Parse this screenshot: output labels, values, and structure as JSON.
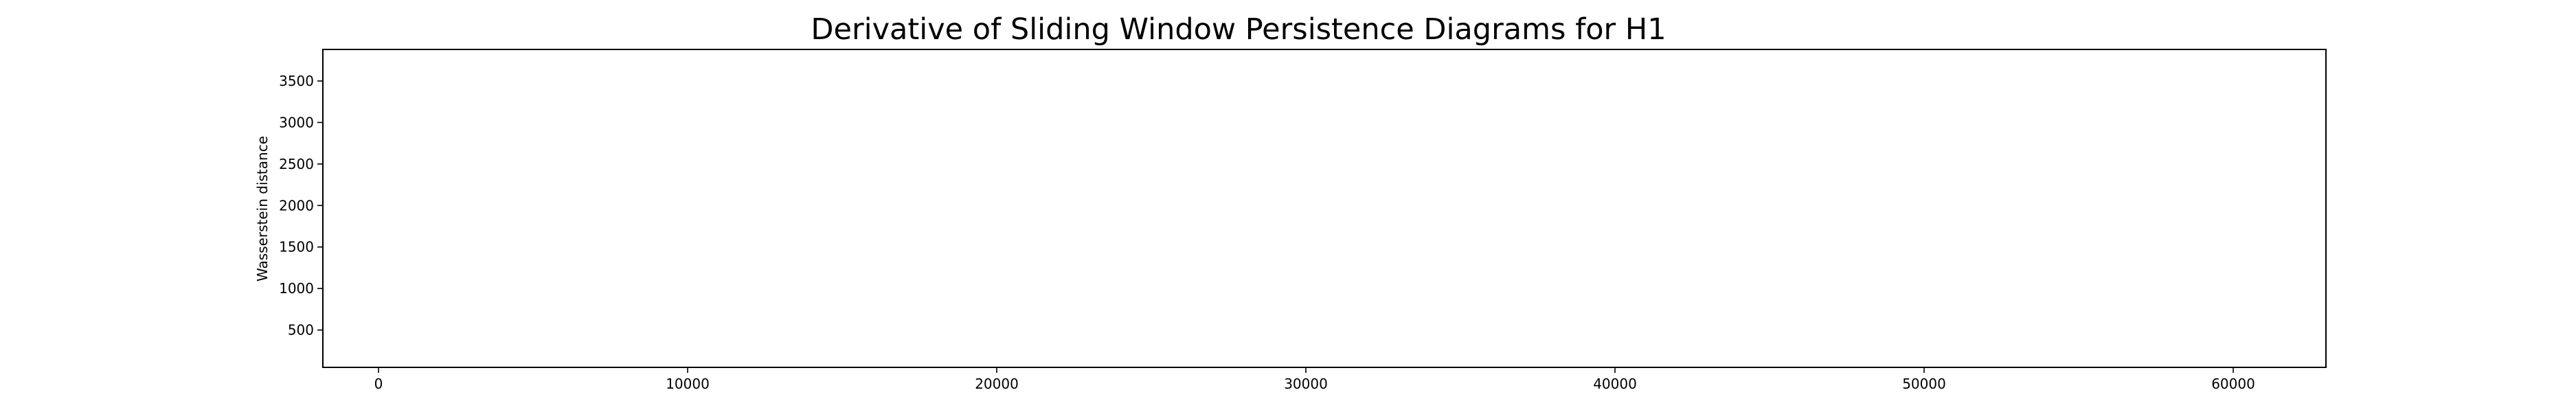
{
  "chart_data": {
    "type": "line",
    "title": "Derivative of Sliding Window Persistence Diagrams for H1",
    "xlabel": "",
    "ylabel": "Wasserstein distance",
    "xlim": [
      -1800,
      63000
    ],
    "ylim": [
      50,
      3880
    ],
    "xticks": [
      0,
      10000,
      20000,
      30000,
      40000,
      50000,
      60000
    ],
    "yticks": [
      500,
      1000,
      1500,
      2000,
      2500,
      3000,
      3500
    ],
    "grid": false,
    "series": []
  }
}
